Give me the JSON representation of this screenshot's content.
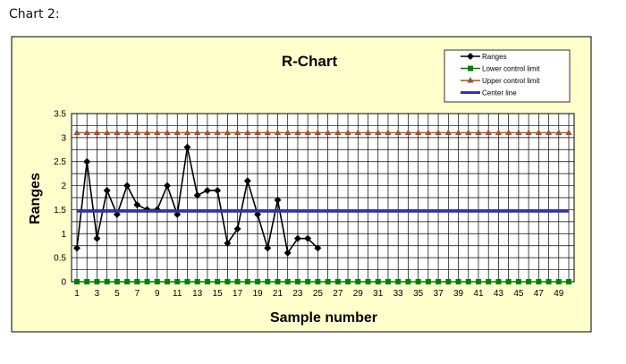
{
  "caption": "Chart 2:",
  "chart_data": {
    "type": "line",
    "title": "R-Chart",
    "xlabel": "Sample number",
    "ylabel": "Ranges",
    "ylim": [
      0,
      3.5
    ],
    "yticks": [
      "0",
      "0.5",
      "1",
      "1.5",
      "2",
      "2.5",
      "3",
      "3.5"
    ],
    "xlim": [
      1,
      50
    ],
    "xticks": [
      "1",
      "3",
      "5",
      "7",
      "9",
      "11",
      "13",
      "15",
      "17",
      "19",
      "21",
      "23",
      "25",
      "27",
      "29",
      "31",
      "33",
      "35",
      "37",
      "39",
      "41",
      "43",
      "45",
      "47",
      "49"
    ],
    "grid": true,
    "legend_position": "top-right",
    "background": "#ffffcc",
    "series": [
      {
        "name": "Ranges",
        "color": "#000000",
        "marker": "diamond",
        "x": [
          1,
          2,
          3,
          4,
          5,
          6,
          7,
          8,
          9,
          10,
          11,
          12,
          13,
          14,
          15,
          16,
          17,
          18,
          19,
          20,
          21,
          22,
          23,
          24,
          25
        ],
        "values": [
          0.7,
          2.5,
          0.9,
          1.9,
          1.4,
          2.0,
          1.6,
          1.5,
          1.5,
          2.0,
          1.4,
          2.8,
          1.8,
          1.9,
          1.9,
          0.8,
          1.1,
          2.1,
          1.4,
          0.7,
          1.7,
          0.6,
          0.9,
          0.9,
          0.7
        ]
      },
      {
        "name": "Lower control limit",
        "color": "#008000",
        "marker": "square",
        "constant": 0
      },
      {
        "name": "Upper control limit",
        "color": "#a0522d",
        "marker": "triangle",
        "constant": 3.1
      },
      {
        "name": "Center line",
        "color": "#3333aa",
        "marker": "none",
        "constant": 1.47
      }
    ]
  }
}
